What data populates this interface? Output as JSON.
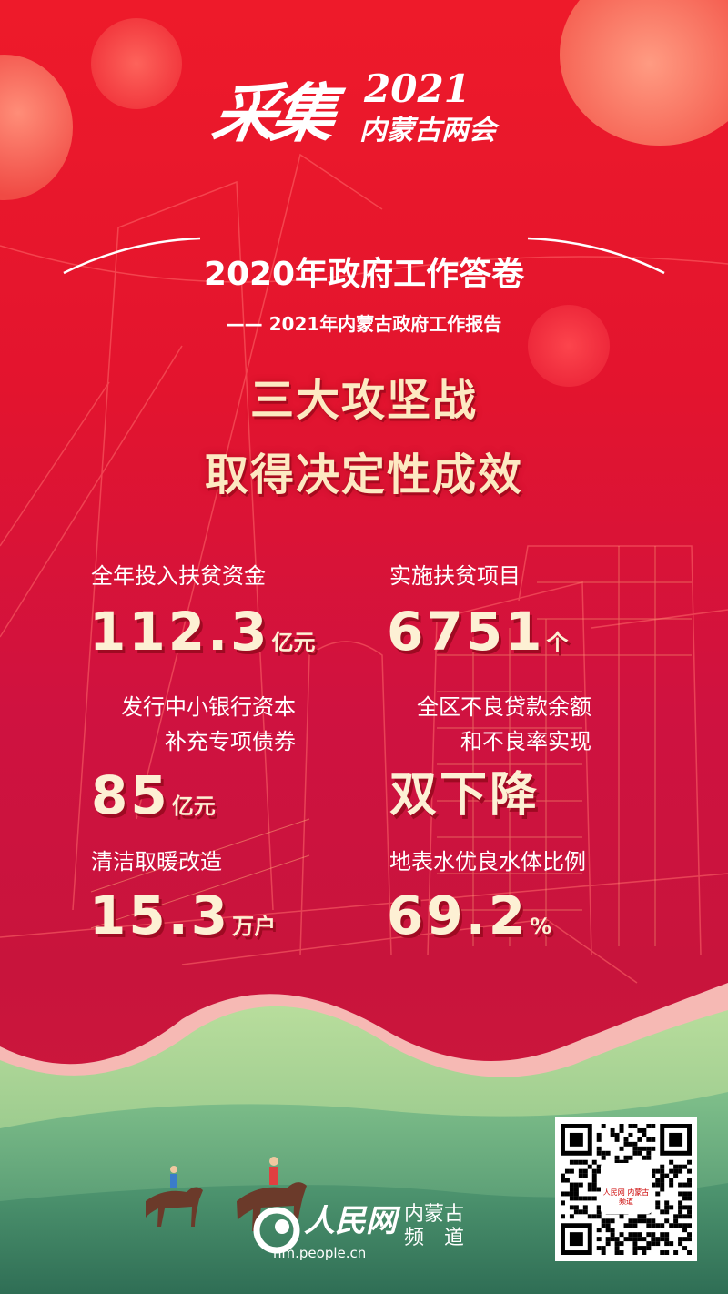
{
  "header": {
    "logo_text": "采集2021内蒙古两会",
    "logo_main": "采集",
    "logo_year": "2021",
    "logo_sub": "内蒙古两会"
  },
  "title": "2020年政府工作答卷",
  "subtitle": "—— 2021年内蒙古政府工作报告",
  "headline": [
    "三大攻坚战",
    "取得决定性成效"
  ],
  "stats": [
    {
      "label": "全年投入扶贫资金",
      "value": "112.3",
      "unit": "亿元"
    },
    {
      "label": "实施扶贫项目",
      "value": "6751",
      "unit": "个"
    },
    {
      "label_lines": [
        "发行中小银行资本",
        "补充专项债券"
      ],
      "value": "85",
      "unit": "亿元"
    },
    {
      "label_lines": [
        "全区不良贷款余额",
        "和不良率实现"
      ],
      "value": "双下降",
      "unit": ""
    },
    {
      "label": "清洁取暖改造",
      "value": "15.3",
      "unit": "万户"
    },
    {
      "label": "地表水优良水体比例",
      "value": "69.2",
      "unit": "%"
    }
  ],
  "footer": {
    "brand_name": "人民网",
    "channel_line1": "内蒙古",
    "channel_line2": "频　道",
    "url": "nm.people.cn",
    "qr_badge": "人民网 内蒙古频道"
  },
  "colors": {
    "background_red": "#e3142e",
    "headline_cream": "#fde9c2",
    "hill_green": "#5e9e6e"
  }
}
